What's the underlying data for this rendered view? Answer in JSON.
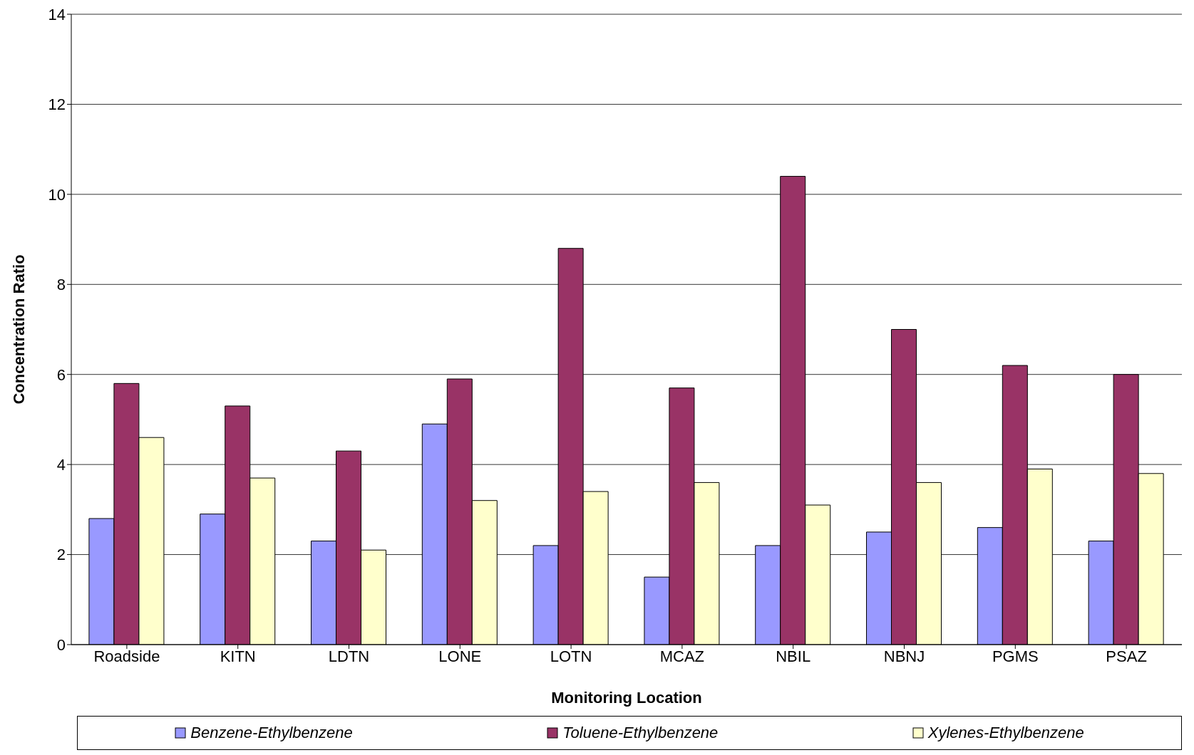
{
  "chart_data": {
    "type": "bar",
    "xlabel": "Monitoring Location",
    "ylabel": "Concentration Ratio",
    "categories": [
      "Roadside",
      "KITN",
      "LDTN",
      "LONE",
      "LOTN",
      "MCAZ",
      "NBIL",
      "NBNJ",
      "PGMS",
      "PSAZ"
    ],
    "series": [
      {
        "name": "Benzene-Ethylbenzene",
        "color": "#9999ff",
        "values": [
          2.8,
          2.9,
          2.3,
          4.9,
          2.2,
          1.5,
          2.2,
          2.5,
          2.6,
          2.3
        ]
      },
      {
        "name": "Toluene-Ethylbenzene",
        "color": "#993366",
        "values": [
          5.8,
          5.3,
          4.3,
          5.9,
          8.8,
          5.7,
          10.4,
          7.0,
          6.2,
          6.0
        ]
      },
      {
        "name": "Xylenes-Ethylbenzene",
        "color": "#ffffcc",
        "values": [
          4.6,
          3.7,
          2.1,
          3.2,
          3.4,
          3.6,
          3.1,
          3.6,
          3.9,
          3.8
        ]
      }
    ],
    "ylim": [
      0,
      14
    ],
    "yticks": [
      0,
      2,
      4,
      6,
      8,
      10,
      12,
      14
    ],
    "grid": "y",
    "legend": "bottom"
  }
}
